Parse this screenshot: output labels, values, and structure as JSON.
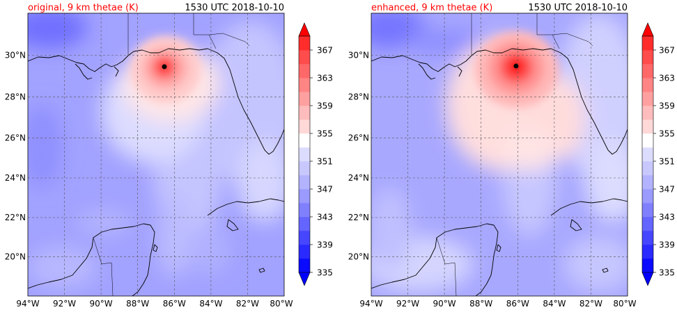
{
  "panels": [
    {
      "id": "original",
      "title": "original, 9 km thetae (K)",
      "time_label": "1530 UTC 2018-10-10",
      "storm_center": {
        "lon": -86.6,
        "lat": 29.5
      },
      "storm_peak": 369
    },
    {
      "id": "enhanced",
      "title": "enhanced, 9 km thetae (K)",
      "time_label": "1530 UTC 2018-10-10",
      "storm_center": {
        "lon": -86.0,
        "lat": 29.5
      },
      "storm_peak": 371
    }
  ],
  "map": {
    "lon_range": [
      -94,
      -80
    ],
    "lat_range": [
      18,
      32
    ],
    "lon_ticks": [
      "94°W",
      "92°W",
      "90°W",
      "88°W",
      "86°W",
      "84°W",
      "82°W",
      "80°W"
    ],
    "lat_ticks": [
      "20°N",
      "22°N",
      "24°N",
      "26°N",
      "28°N",
      "30°N"
    ],
    "lon_tick_values": [
      -94,
      -92,
      -90,
      -88,
      -86,
      -84,
      -82,
      -80
    ],
    "lat_tick_values": [
      20,
      22,
      24,
      26,
      28,
      30
    ],
    "gridlines": true
  },
  "colorbar": {
    "tick_labels": [
      "335",
      "339",
      "343",
      "347",
      "351",
      "355",
      "359",
      "363",
      "367"
    ],
    "levels": [
      335,
      337,
      339,
      341,
      343,
      345,
      347,
      349,
      351,
      353,
      355,
      357,
      359,
      361,
      363,
      365,
      367,
      369
    ],
    "colors": [
      "#0a0aff",
      "#2a2aff",
      "#4646ff",
      "#6464ff",
      "#8080ff",
      "#9a9aff",
      "#b2b2ff",
      "#c8c8ff",
      "#dcdcff",
      "#ffffff",
      "#ffd8d8",
      "#ffbcbc",
      "#ffa0a0",
      "#ff8484",
      "#ff6868",
      "#ff4c4c",
      "#ff2c2c"
    ],
    "extend_low_color": "#0000ff",
    "extend_high_color": "#ff0000"
  },
  "colors": {
    "title_color": "#ff0000",
    "land_outline": "#000000",
    "grid_color": "#555555"
  }
}
